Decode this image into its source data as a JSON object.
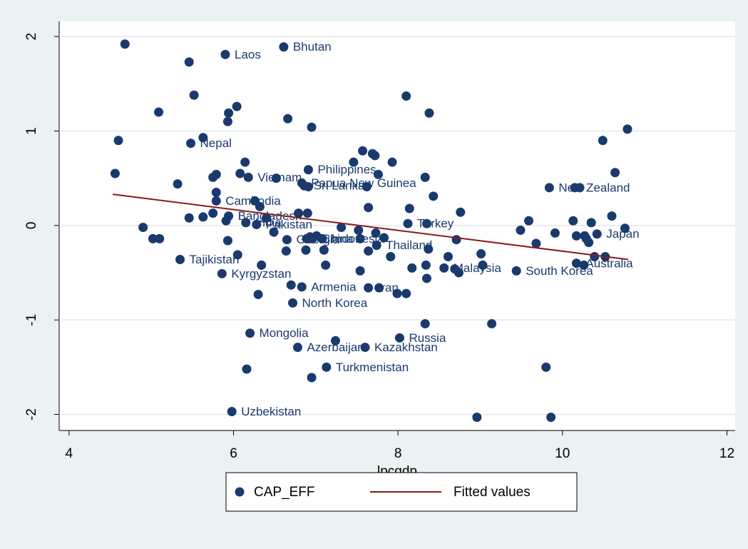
{
  "chart_data": {
    "type": "scatter",
    "x_label": "lpcgdp",
    "xlim": [
      3.88,
      12.1
    ],
    "ylim": [
      -2.17,
      2.16
    ],
    "xticks": [
      4,
      6,
      8,
      10,
      12
    ],
    "yticks": [
      2,
      1,
      0,
      -1,
      -2
    ],
    "grid": true,
    "legend": "bottom",
    "series": [
      {
        "name": "CAP_EFF",
        "type": "scatter",
        "color": "#1a3a6e",
        "x": [
          4.68,
          5.46,
          5.9,
          6.61,
          5.52,
          5.09,
          6.04,
          5.94,
          5.93,
          6.66,
          6.95,
          4.6,
          5.63,
          5.48,
          8.1,
          8.38,
          10.79,
          10.49,
          4.56,
          5.32,
          6.14,
          6.08,
          5.79,
          5.75,
          6.18,
          6.52,
          6.91,
          6.83,
          6.86,
          6.91,
          7.46,
          7.57,
          7.69,
          7.72,
          7.93,
          7.76,
          7.62,
          8.33,
          8.43,
          9.84,
          10.15,
          10.21,
          10.64,
          5.79,
          5.79,
          6.26,
          6.32,
          7.64,
          8.14,
          5.75,
          5.94,
          6.4,
          6.79,
          6.9,
          5.46,
          5.63,
          5.91,
          6.15,
          6.28,
          6.49,
          4.9,
          5.02,
          5.1,
          5.93,
          7.31,
          7.52,
          7.01,
          6.93,
          6.65,
          6.89,
          6.96,
          7.08,
          7.54,
          7.73,
          7.83,
          7.74,
          7.64,
          7.91,
          8.12,
          8.35,
          8.37,
          8.71,
          8.76,
          9.59,
          9.49,
          9.68,
          9.91,
          10.13,
          10.17,
          10.27,
          10.32,
          10.29,
          10.35,
          10.6,
          10.42,
          10.76,
          10.39,
          10.17,
          10.26,
          10.52,
          9.44,
          5.35,
          6.05,
          6.34,
          5.86,
          6.64,
          6.88,
          7.1,
          7.12,
          7.54,
          8.17,
          8.34,
          8.61,
          8.56,
          8.69,
          8.74,
          9.01,
          9.03,
          8.35,
          6.3,
          6.7,
          6.83,
          7.64,
          7.77,
          7.99,
          8.1,
          6.72,
          8.33,
          9.14,
          6.2,
          7.24,
          8.02,
          6.78,
          7.6,
          6.16,
          7.13,
          6.95,
          9.8,
          5.98,
          8.96,
          9.86
        ],
        "values": [
          1.92,
          1.73,
          1.81,
          1.89,
          1.38,
          1.2,
          1.26,
          1.19,
          1.1,
          1.13,
          1.04,
          0.9,
          0.93,
          0.87,
          1.37,
          1.19,
          1.02,
          0.9,
          0.55,
          0.44,
          0.67,
          0.55,
          0.54,
          0.51,
          0.51,
          0.5,
          0.59,
          0.45,
          0.42,
          0.41,
          0.67,
          0.79,
          0.76,
          0.74,
          0.67,
          0.54,
          0.41,
          0.51,
          0.31,
          0.4,
          0.4,
          0.4,
          0.56,
          0.35,
          0.26,
          0.26,
          0.2,
          0.19,
          0.18,
          0.13,
          0.1,
          0.08,
          0.13,
          0.13,
          0.08,
          0.09,
          0.05,
          0.03,
          0.01,
          -0.07,
          -0.02,
          -0.14,
          -0.14,
          -0.16,
          -0.02,
          -0.05,
          -0.11,
          -0.12,
          -0.15,
          -0.14,
          -0.14,
          -0.14,
          -0.14,
          -0.08,
          -0.13,
          -0.21,
          -0.27,
          -0.33,
          0.02,
          0.02,
          -0.25,
          -0.15,
          0.14,
          0.05,
          -0.05,
          -0.19,
          -0.08,
          0.05,
          -0.11,
          -0.11,
          -0.18,
          -0.14,
          0.03,
          0.1,
          -0.09,
          -0.03,
          -0.33,
          -0.4,
          -0.42,
          -0.33,
          -0.48,
          -0.36,
          -0.31,
          -0.42,
          -0.51,
          -0.27,
          -0.26,
          -0.26,
          -0.42,
          -0.48,
          -0.45,
          -0.42,
          -0.33,
          -0.45,
          -0.46,
          -0.5,
          -0.3,
          -0.42,
          -0.56,
          -0.73,
          -0.63,
          -0.65,
          -0.66,
          -0.66,
          -0.72,
          -0.72,
          -0.82,
          -1.04,
          -1.04,
          -1.14,
          -1.22,
          -1.19,
          -1.29,
          -1.29,
          -1.52,
          -1.5,
          -1.61,
          -1.5,
          -1.97,
          -2.03,
          -2.03
        ],
        "labels": [
          null,
          null,
          "Laos",
          "Bhutan",
          null,
          null,
          null,
          null,
          null,
          null,
          null,
          null,
          null,
          "Nepal",
          null,
          null,
          null,
          null,
          null,
          null,
          null,
          null,
          null,
          null,
          "Vietnam",
          null,
          "Philippines",
          "Papua New Guinea",
          "Sri Lanka",
          null,
          null,
          null,
          null,
          null,
          null,
          null,
          null,
          null,
          null,
          "New Zealand",
          null,
          null,
          null,
          null,
          "Cambodia",
          null,
          null,
          null,
          null,
          null,
          "Bangladesh",
          null,
          null,
          null,
          null,
          null,
          null,
          "India",
          "Pakistan",
          null,
          null,
          null,
          null,
          null,
          null,
          null,
          null,
          null,
          "Georgia",
          null,
          "China",
          "Indonesia",
          null,
          null,
          null,
          "Thailand",
          null,
          null,
          "Turkey",
          null,
          null,
          null,
          null,
          null,
          null,
          null,
          null,
          null,
          null,
          null,
          null,
          null,
          null,
          null,
          "Japan",
          null,
          null,
          "Australia",
          null,
          null,
          "South Korea",
          "Tajikistan",
          null,
          null,
          "Kyrgyzstan",
          null,
          null,
          null,
          null,
          null,
          null,
          null,
          null,
          "Malaysia",
          null,
          null,
          null,
          null,
          null,
          null,
          null,
          "Armenia",
          "Iran",
          null,
          null,
          null,
          "North Korea",
          null,
          null,
          "Mongolia",
          null,
          "Russia",
          "Azerbaijan",
          "Kazakhstan",
          null,
          "Turkmenistan",
          null,
          null,
          "Uzbekistan",
          null,
          null
        ]
      },
      {
        "name": "Fitted values",
        "type": "line",
        "color": "#8b1a1a",
        "x": [
          4.53,
          10.8
        ],
        "values": [
          0.33,
          -0.36
        ]
      }
    ]
  }
}
